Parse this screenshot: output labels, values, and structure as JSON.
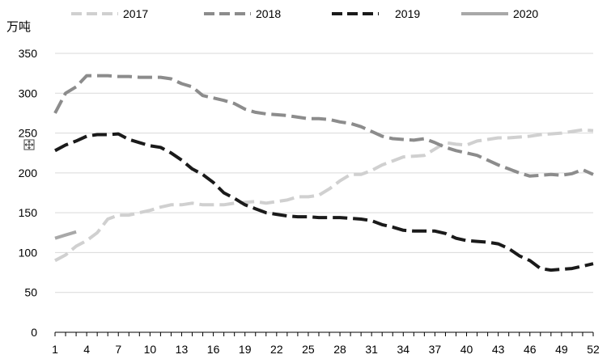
{
  "chart_data": {
    "type": "line",
    "unit_label": "万吨",
    "x": [
      1,
      2,
      3,
      4,
      5,
      6,
      7,
      8,
      9,
      10,
      11,
      12,
      13,
      14,
      15,
      16,
      17,
      18,
      19,
      20,
      21,
      22,
      23,
      24,
      25,
      26,
      27,
      28,
      29,
      30,
      31,
      32,
      33,
      34,
      35,
      36,
      37,
      38,
      39,
      40,
      41,
      42,
      43,
      44,
      45,
      46,
      47,
      48,
      49,
      50,
      51,
      52
    ],
    "x_ticks": [
      1,
      4,
      7,
      10,
      13,
      16,
      19,
      22,
      25,
      28,
      31,
      34,
      37,
      40,
      43,
      46,
      49,
      52
    ],
    "y_ticks": [
      0,
      50,
      100,
      150,
      200,
      250,
      300,
      350
    ],
    "ylim": [
      0,
      350
    ],
    "xlim": [
      1,
      52
    ],
    "legend_position": "top",
    "series": [
      {
        "name": "2017",
        "color": "#d0d0d0",
        "dash": "dashed",
        "values": [
          90,
          97,
          108,
          115,
          125,
          142,
          147,
          147,
          150,
          153,
          157,
          160,
          160,
          162,
          160,
          160,
          160,
          162,
          163,
          164,
          162,
          164,
          166,
          170,
          170,
          172,
          180,
          190,
          198,
          198,
          203,
          210,
          215,
          220,
          221,
          222,
          230,
          238,
          236,
          235,
          240,
          242,
          244,
          244,
          245,
          246,
          248,
          249,
          250,
          252,
          254,
          253
        ]
      },
      {
        "name": "2018",
        "color": "#8c8c8c",
        "dash": "dashed",
        "values": [
          275,
          300,
          308,
          322,
          322,
          322,
          321,
          321,
          320,
          320,
          320,
          318,
          312,
          308,
          297,
          294,
          291,
          287,
          280,
          276,
          274,
          273,
          272,
          270,
          268,
          268,
          267,
          264,
          262,
          258,
          252,
          246,
          243,
          242,
          241,
          243,
          238,
          232,
          228,
          225,
          222,
          216,
          210,
          205,
          200,
          196,
          197,
          198,
          197,
          199,
          204,
          198
        ]
      },
      {
        "name": "2019",
        "color": "#1a1a1a",
        "dash": "dashed",
        "values": [
          228,
          235,
          240,
          246,
          248,
          248,
          249,
          242,
          238,
          234,
          232,
          225,
          216,
          205,
          198,
          188,
          175,
          168,
          160,
          155,
          150,
          148,
          146,
          145,
          145,
          144,
          144,
          144,
          143,
          142,
          140,
          135,
          132,
          128,
          127,
          127,
          127,
          124,
          118,
          115,
          114,
          113,
          111,
          105,
          96,
          90,
          80,
          78,
          79,
          80,
          83,
          86
        ]
      },
      {
        "name": "2020",
        "color": "#a8a8a8",
        "dash": "solid",
        "values": [
          118,
          122,
          126,
          null,
          null,
          null,
          null,
          null,
          null,
          null,
          null,
          null,
          null,
          null,
          null,
          null,
          null,
          null,
          null,
          null,
          null,
          null,
          null,
          null,
          null,
          null,
          null,
          null,
          null,
          null,
          null,
          null,
          null,
          null,
          null,
          null,
          null,
          null,
          null,
          null,
          null,
          null,
          null,
          null,
          null,
          null,
          null,
          null,
          null,
          null,
          null,
          null
        ]
      }
    ]
  }
}
